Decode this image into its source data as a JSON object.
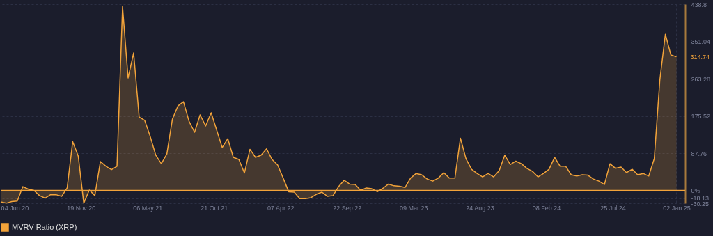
{
  "chart_data": {
    "type": "area",
    "x": [
      "2020-04-30",
      "2020-05-14",
      "2020-05-28",
      "2020-06-11",
      "2020-06-25",
      "2020-07-09",
      "2020-07-23",
      "2020-08-06",
      "2020-08-20",
      "2020-09-03",
      "2020-09-17",
      "2020-10-01",
      "2020-10-15",
      "2020-10-29",
      "2020-11-12",
      "2020-11-26",
      "2020-12-10",
      "2020-12-24",
      "2021-01-07",
      "2021-01-21",
      "2021-02-04",
      "2021-02-18",
      "2021-03-04",
      "2021-03-18",
      "2021-04-01",
      "2021-04-15",
      "2021-04-29",
      "2021-05-13",
      "2021-05-27",
      "2021-06-10",
      "2021-06-24",
      "2021-07-08",
      "2021-07-22",
      "2021-08-05",
      "2021-08-19",
      "2021-09-02",
      "2021-09-16",
      "2021-09-30",
      "2021-10-14",
      "2021-10-28",
      "2021-11-11",
      "2021-11-25",
      "2021-12-09",
      "2021-12-23",
      "2022-01-06",
      "2022-01-20",
      "2022-02-03",
      "2022-02-17",
      "2022-03-03",
      "2022-03-17",
      "2022-03-31",
      "2022-04-14",
      "2022-04-28",
      "2022-05-12",
      "2022-05-26",
      "2022-06-09",
      "2022-06-23",
      "2022-07-07",
      "2022-07-21",
      "2022-08-04",
      "2022-08-18",
      "2022-09-01",
      "2022-09-15",
      "2022-09-29",
      "2022-10-13",
      "2022-10-27",
      "2022-11-10",
      "2022-11-24",
      "2022-12-08",
      "2022-12-22",
      "2023-01-05",
      "2023-01-19",
      "2023-02-02",
      "2023-02-16",
      "2023-03-02",
      "2023-03-16",
      "2023-03-30",
      "2023-04-13",
      "2023-04-27",
      "2023-05-11",
      "2023-05-25",
      "2023-06-08",
      "2023-06-22",
      "2023-07-06",
      "2023-07-20",
      "2023-08-03",
      "2023-08-17",
      "2023-08-31",
      "2023-09-14",
      "2023-09-28",
      "2023-10-12",
      "2023-10-26",
      "2023-11-09",
      "2023-11-23",
      "2023-12-07",
      "2023-12-21",
      "2024-01-04",
      "2024-01-18",
      "2024-02-01",
      "2024-02-15",
      "2024-02-29",
      "2024-03-14",
      "2024-03-28",
      "2024-04-11",
      "2024-04-25",
      "2024-05-09",
      "2024-05-23",
      "2024-06-06",
      "2024-06-20",
      "2024-07-04",
      "2024-07-18",
      "2024-08-01",
      "2024-08-15",
      "2024-08-29",
      "2024-09-12",
      "2024-09-26",
      "2024-10-10",
      "2024-10-24",
      "2024-11-07",
      "2024-11-21",
      "2024-12-05",
      "2024-12-19",
      "2025-01-02"
    ],
    "series": [
      {
        "name": "MVRV Ratio (XRP)",
        "color": "#f2a33a",
        "values": [
          -27,
          -30,
          -26,
          -25,
          9,
          3,
          0,
          -12,
          -18,
          -10,
          -10,
          -14,
          6,
          115,
          81,
          -30,
          1,
          -12,
          68,
          57,
          49,
          57,
          433,
          265,
          324,
          173,
          165,
          127,
          83,
          63,
          86,
          168,
          199,
          209,
          163,
          137,
          178,
          152,
          183,
          142,
          101,
          122,
          78,
          73,
          41,
          97,
          78,
          83,
          98,
          73,
          60,
          29,
          -3,
          -4,
          -19,
          -19,
          -17,
          -9,
          -4,
          -14,
          -12,
          9,
          24,
          15,
          14,
          0,
          6,
          4,
          -3,
          5,
          15,
          11,
          10,
          7,
          29,
          40,
          37,
          27,
          22,
          29,
          42,
          29,
          29,
          123,
          75,
          50,
          40,
          32,
          40,
          32,
          47,
          83,
          61,
          69,
          63,
          52,
          45,
          32,
          40,
          50,
          78,
          57,
          57,
          37,
          34,
          37,
          36,
          27,
          22,
          14,
          63,
          52,
          55,
          42,
          50,
          37,
          40,
          34,
          75,
          260,
          368,
          319,
          314.74
        ]
      }
    ],
    "xlim": [
      "2020-04-30",
      "2025-01-24"
    ],
    "xticks": [
      {
        "value": "2020-06-04",
        "label": "04 Jun 20"
      },
      {
        "value": "2020-11-19",
        "label": "19 Nov 20"
      },
      {
        "value": "2021-05-06",
        "label": "06 May 21"
      },
      {
        "value": "2021-10-21",
        "label": "21 Oct 21"
      },
      {
        "value": "2022-04-07",
        "label": "07 Apr 22"
      },
      {
        "value": "2022-09-22",
        "label": "22 Sep 22"
      },
      {
        "value": "2023-03-09",
        "label": "09 Mar 23"
      },
      {
        "value": "2023-08-24",
        "label": "24 Aug 23"
      },
      {
        "value": "2024-02-08",
        "label": "08 Feb 24"
      },
      {
        "value": "2024-07-25",
        "label": "25 Jul 24"
      },
      {
        "value": "2025-01-02",
        "label": "02 Jan 25"
      }
    ],
    "ylim": [
      -30.25,
      438.8
    ],
    "yticks": [
      -30.25,
      -18.13,
      {
        "value": 0,
        "label": "0%"
      },
      87.76,
      175.52,
      263.28,
      351.04,
      438.8
    ],
    "ref_lines": [
      {
        "axis": "y",
        "value": 0,
        "label": null,
        "color": "#f2a33a"
      }
    ],
    "annotations": [
      {
        "text": "314.74",
        "x": "2025-01-02",
        "y": 314.74
      }
    ],
    "grid": true,
    "legend": "bottom"
  }
}
